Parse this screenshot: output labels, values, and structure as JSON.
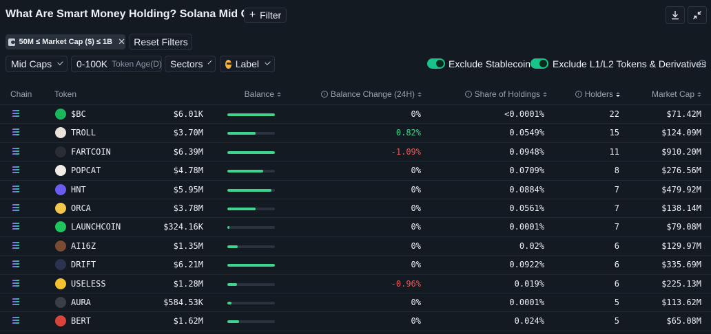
{
  "header": {
    "title": "What Are Smart Money Holding? Solana Mid Cap",
    "filter_label": "Filter",
    "download_icon": "download-icon",
    "collapse_icon": "collapse-icon"
  },
  "filters": {
    "active_chip": "50M ≤ Market Cap ($) ≤ 1B",
    "reset_label": "Reset Filters",
    "cap_select": "Mid Caps",
    "token_age": "0-100K",
    "token_age_sub": "Token Age(D)",
    "sectors": "Sectors",
    "label": "Label",
    "exclude_stablecoin": "Exclude Stablecoin",
    "exclude_l1l2": "Exclude L1/L2 Tokens & Derivatives"
  },
  "columns": {
    "chain": "Chain",
    "token": "Token",
    "balance": "Balance",
    "balance_change": "Balance Change (24H)",
    "share": "Share of Holdings",
    "holders": "Holders",
    "market_cap": "Market Cap"
  },
  "rows": [
    {
      "token": "$BC",
      "balance": "$6.01K",
      "bar": 1.0,
      "change": "0%",
      "share": "<0.0001%",
      "holders": "22",
      "mcap": "$71.42M",
      "logo": "#1bb55c"
    },
    {
      "token": "TROLL",
      "balance": "$3.70M",
      "bar": 0.6,
      "change": "0.82%",
      "share": "0.0549%",
      "holders": "15",
      "mcap": "$124.09M",
      "logo": "#e8e2d8"
    },
    {
      "token": "FARTCOIN",
      "balance": "$6.39M",
      "bar": 1.0,
      "change": "-1.09%",
      "share": "0.0948%",
      "holders": "11",
      "mcap": "$910.20M",
      "logo": "#2a2e34"
    },
    {
      "token": "POPCAT",
      "balance": "$4.78M",
      "bar": 0.75,
      "change": "0%",
      "share": "0.0709%",
      "holders": "8",
      "mcap": "$276.56M",
      "logo": "#f0ece6"
    },
    {
      "token": "HNT",
      "balance": "$5.95M",
      "bar": 0.93,
      "change": "0%",
      "share": "0.0884%",
      "holders": "7",
      "mcap": "$479.92M",
      "logo": "#6b5cf0"
    },
    {
      "token": "ORCA",
      "balance": "$3.78M",
      "bar": 0.6,
      "change": "0%",
      "share": "0.0561%",
      "holders": "7",
      "mcap": "$138.14M",
      "logo": "#f1c64b"
    },
    {
      "token": "LAUNCHCOIN",
      "balance": "$324.16K",
      "bar": 0.05,
      "change": "0%",
      "share": "0.0001%",
      "holders": "7",
      "mcap": "$79.08M",
      "logo": "#21c55d"
    },
    {
      "token": "AI16Z",
      "balance": "$1.35M",
      "bar": 0.22,
      "change": "0%",
      "share": "0.02%",
      "holders": "6",
      "mcap": "$129.97M",
      "logo": "#7a4a32"
    },
    {
      "token": "DRIFT",
      "balance": "$6.21M",
      "bar": 1.0,
      "change": "0%",
      "share": "0.0922%",
      "holders": "6",
      "mcap": "$335.69M",
      "logo": "#2c3350"
    },
    {
      "token": "USELESS",
      "balance": "$1.28M",
      "bar": 0.2,
      "change": "-0.96%",
      "share": "0.019%",
      "holders": "6",
      "mcap": "$225.13M",
      "logo": "#f2c230"
    },
    {
      "token": "AURA",
      "balance": "$584.53K",
      "bar": 0.08,
      "change": "0%",
      "share": "0.0001%",
      "holders": "5",
      "mcap": "$113.62M",
      "logo": "#3a3f46"
    },
    {
      "token": "BERT",
      "balance": "$1.62M",
      "bar": 0.25,
      "change": "0%",
      "share": "0.024%",
      "holders": "5",
      "mcap": "$65.08M",
      "logo": "#d9443a"
    }
  ]
}
